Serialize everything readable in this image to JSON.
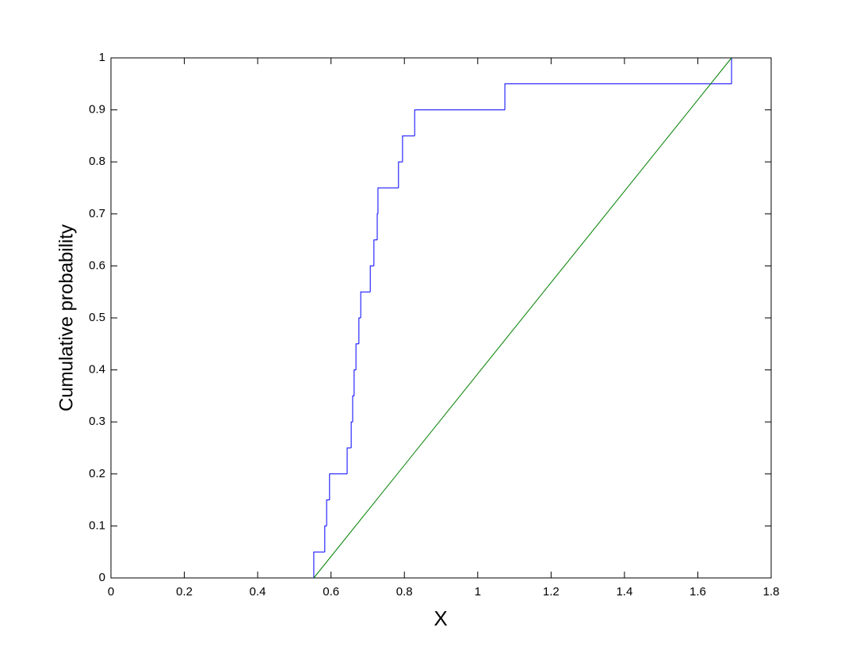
{
  "chart_data": {
    "type": "line",
    "xlabel": "X",
    "ylabel": "Cumulative probability",
    "xlim": [
      0,
      1.8
    ],
    "ylim": [
      0,
      1
    ],
    "xticks": [
      0,
      0.2,
      0.4,
      0.6,
      0.8,
      1,
      1.2,
      1.4,
      1.6,
      1.8
    ],
    "yticks": [
      0,
      0.1,
      0.2,
      0.3,
      0.4,
      0.5,
      0.6,
      0.7,
      0.8,
      0.9,
      1
    ],
    "grid": false,
    "box": true,
    "series": [
      {
        "color": "#0000ff",
        "drawstyle": "steps-post",
        "x": [
          0.553,
          0.583,
          0.588,
          0.596,
          0.644,
          0.655,
          0.659,
          0.663,
          0.668,
          0.676,
          0.681,
          0.707,
          0.717,
          0.726,
          0.728,
          0.784,
          0.795,
          0.828,
          1.074,
          1.692
        ],
        "values": [
          0.05,
          0.1,
          0.15,
          0.2,
          0.25,
          0.3,
          0.35,
          0.4,
          0.45,
          0.5,
          0.55,
          0.6,
          0.65,
          0.7,
          0.75,
          0.8,
          0.85,
          0.9,
          0.95,
          1
        ]
      },
      {
        "color": "#008000",
        "drawstyle": "default",
        "x": [
          0.553,
          1.692
        ],
        "values": [
          0,
          1
        ]
      }
    ]
  }
}
